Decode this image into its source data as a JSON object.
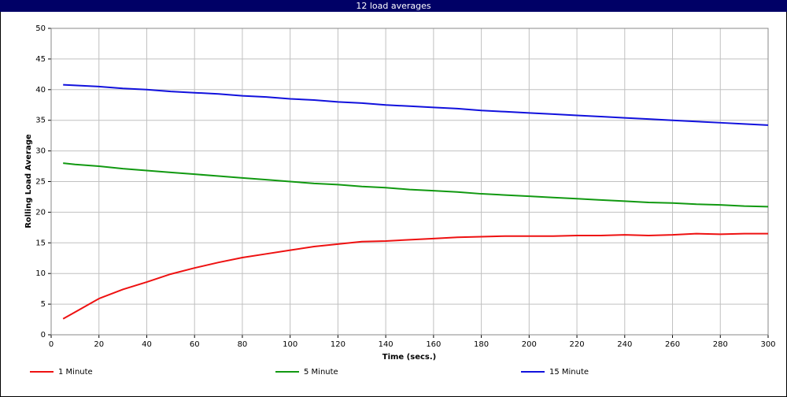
{
  "chart_data": {
    "type": "line",
    "title": "12 load averages",
    "x_label": "Time (secs.)",
    "y_label": "Rolling Load Average",
    "x": [
      5,
      10,
      20,
      30,
      40,
      50,
      60,
      70,
      80,
      90,
      100,
      110,
      120,
      130,
      140,
      150,
      160,
      170,
      180,
      190,
      200,
      210,
      220,
      230,
      240,
      250,
      260,
      270,
      280,
      290,
      300
    ],
    "series": [
      {
        "name": "1 Minute",
        "color": "#ee1111",
        "values": [
          2.6,
          3.7,
          5.9,
          7.4,
          8.6,
          9.9,
          10.9,
          11.8,
          12.6,
          13.2,
          13.8,
          14.4,
          14.8,
          15.2,
          15.3,
          15.5,
          15.7,
          15.9,
          16.0,
          16.1,
          16.1,
          16.1,
          16.2,
          16.2,
          16.3,
          16.2,
          16.3,
          16.5,
          16.4,
          16.5,
          16.5
        ]
      },
      {
        "name": "5 Minute",
        "color": "#119911",
        "values": [
          28.0,
          27.8,
          27.5,
          27.1,
          26.8,
          26.5,
          26.2,
          25.9,
          25.6,
          25.3,
          25.0,
          24.7,
          24.5,
          24.2,
          24.0,
          23.7,
          23.5,
          23.3,
          23.0,
          22.8,
          22.6,
          22.4,
          22.2,
          22.0,
          21.8,
          21.6,
          21.5,
          21.3,
          21.2,
          21.0,
          20.9
        ]
      },
      {
        "name": "15 Minute",
        "color": "#1111dd",
        "values": [
          40.8,
          40.7,
          40.5,
          40.2,
          40.0,
          39.7,
          39.5,
          39.3,
          39.0,
          38.8,
          38.5,
          38.3,
          38.0,
          37.8,
          37.5,
          37.3,
          37.1,
          36.9,
          36.6,
          36.4,
          36.2,
          36.0,
          35.8,
          35.6,
          35.4,
          35.2,
          35.0,
          34.8,
          34.6,
          34.4,
          34.2
        ]
      }
    ],
    "xlim": [
      0,
      300
    ],
    "xticks": [
      0,
      20,
      40,
      60,
      80,
      100,
      120,
      140,
      160,
      180,
      200,
      220,
      240,
      260,
      280,
      300
    ],
    "ylim": [
      0,
      50
    ],
    "yticks": [
      0,
      5,
      10,
      15,
      20,
      25,
      30,
      35,
      40,
      45,
      50
    ],
    "grid": true
  }
}
